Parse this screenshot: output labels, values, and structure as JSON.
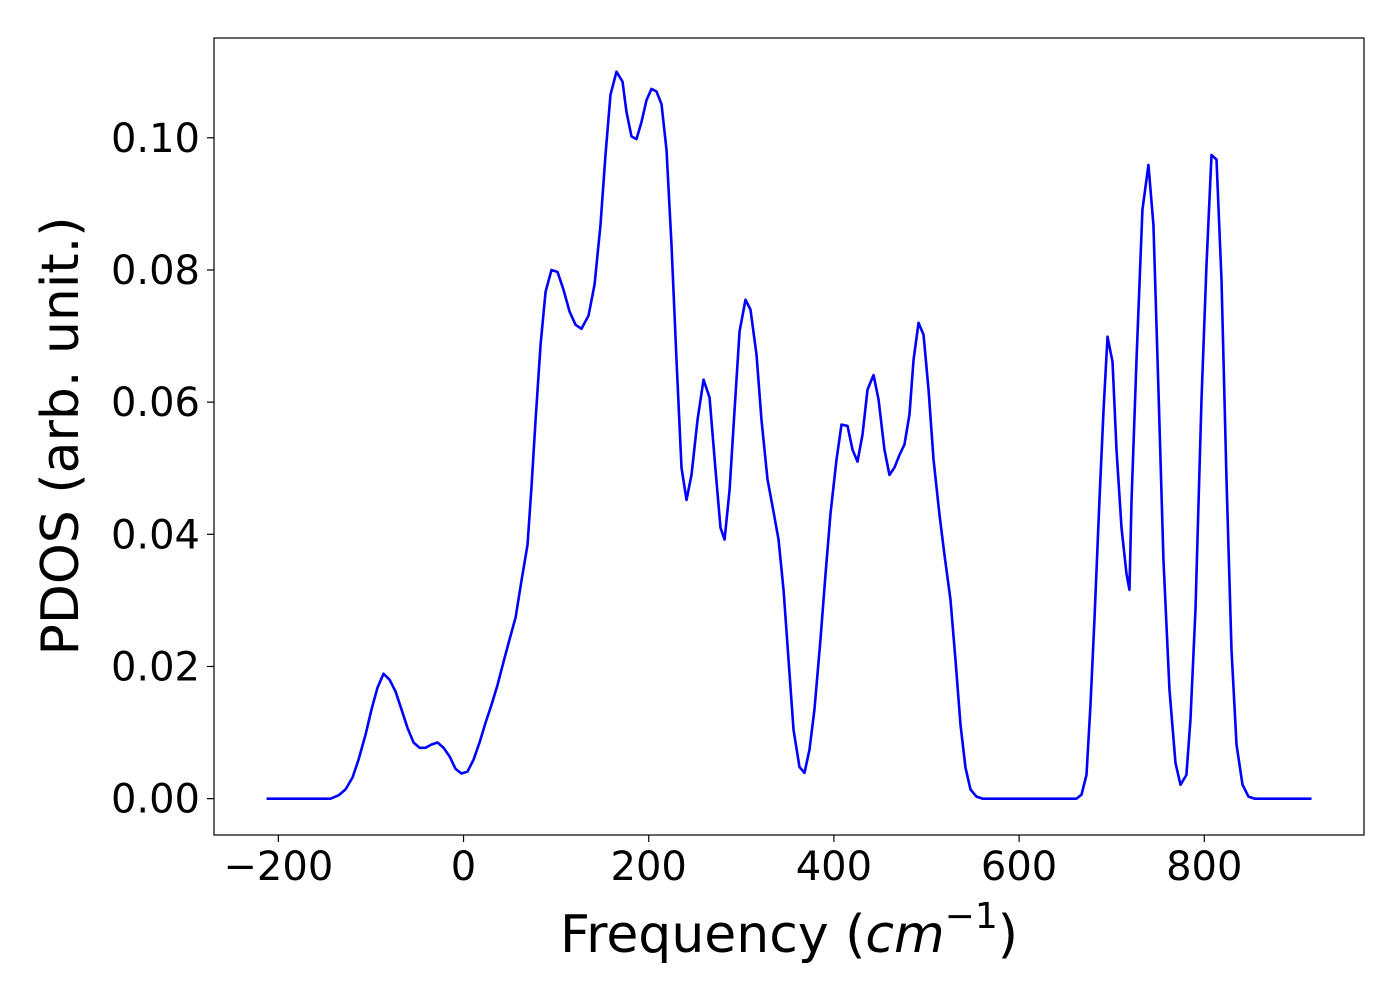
{
  "chart_data": {
    "type": "line",
    "y_label": "PDOS (arb. unit.)",
    "x_label": {
      "text": "Frequency (",
      "unit": "cm",
      "exponent": "−1",
      "close": ")"
    },
    "color": "#0000ff",
    "xlim": [
      -269.5,
      972.5
    ],
    "ylim": [
      -0.0055,
      0.1151
    ],
    "xticks": [
      {
        "value": -200,
        "label": "−200"
      },
      0,
      200,
      400,
      600,
      800
    ],
    "yticks": [
      {
        "value": 0,
        "label": "0.00"
      },
      {
        "value": 0.02,
        "label": "0.02"
      },
      {
        "value": 0.04,
        "label": "0.04"
      },
      {
        "value": 0.06,
        "label": "0.06"
      },
      {
        "value": 0.08,
        "label": "0.08"
      },
      {
        "value": 0.1,
        "label": "0.10"
      }
    ],
    "grid": false,
    "x": [
      -212.7,
      -143.6,
      -135.0,
      -127.4,
      -119.9,
      -113.4,
      -105.8,
      -99.4,
      -92.9,
      -86.4,
      -79.9,
      -73.4,
      -67.0,
      -60.5,
      -54.0,
      -47.5,
      -41.0,
      -34.6,
      -28.1,
      -21.6,
      -15.1,
      -8.6,
      -2.2,
      4.3,
      10.8,
      17.3,
      23.8,
      30.2,
      36.7,
      43.2,
      49.7,
      56.2,
      62.6,
      69.1,
      73.4,
      77.8,
      83.2,
      88.6,
      95.0,
      101.5,
      108.0,
      114.5,
      121.0,
      127.4,
      135.0,
      141.5,
      147.9,
      153.3,
      158.7,
      165.2,
      171.7,
      176.0,
      181.4,
      186.8,
      192.2,
      197.6,
      203.0,
      208.4,
      213.8,
      219.2,
      224.6,
      230.0,
      235.4,
      240.8,
      246.2,
      252.7,
      259.2,
      265.7,
      272.1,
      277.5,
      281.9,
      287.3,
      292.7,
      298.1,
      304.5,
      309.9,
      316.4,
      321.8,
      328.3,
      334.8,
      340.2,
      345.6,
      351.0,
      356.4,
      362.8,
      368.2,
      373.6,
      379.0,
      385.5,
      390.9,
      396.3,
      402.8,
      408.2,
      414.7,
      420.1,
      425.5,
      430.9,
      436.3,
      442.8,
      448.2,
      454.6,
      460.0,
      465.4,
      470.8,
      476.2,
      481.6,
      486.0,
      491.4,
      496.8,
      502.2,
      507.6,
      514.0,
      519.4,
      525.9,
      531.3,
      536.7,
      542.1,
      547.5,
      554.0,
      560.5,
      662.0,
      667.4,
      672.8,
      677.1,
      681.4,
      686.8,
      691.2,
      695.5,
      700.9,
      705.2,
      710.6,
      716.0,
      719.2,
      721.4,
      726.8,
      733.2,
      739.7,
      745.1,
      750.5,
      755.9,
      762.4,
      768.9,
      774.3,
      780.7,
      785.1,
      790.5,
      797.0,
      802.4,
      807.8,
      813.2,
      818.6,
      824.0,
      829.4,
      834.8,
      841.3,
      847.8,
      854.2,
      915.8
    ],
    "values": [
      0,
      0,
      0.0005,
      0.0014,
      0.0032,
      0.0059,
      0.0097,
      0.0135,
      0.0168,
      0.0189,
      0.018,
      0.0162,
      0.0135,
      0.0107,
      0.0085,
      0.0077,
      0.0077,
      0.0082,
      0.0085,
      0.0077,
      0.0064,
      0.0045,
      0.0038,
      0.0041,
      0.0059,
      0.0085,
      0.0115,
      0.0142,
      0.0172,
      0.0207,
      0.0241,
      0.0274,
      0.033,
      0.0384,
      0.0472,
      0.0573,
      0.0687,
      0.0767,
      0.08,
      0.0797,
      0.077,
      0.0737,
      0.0717,
      0.0711,
      0.0731,
      0.0778,
      0.0868,
      0.0974,
      0.1065,
      0.11,
      0.1085,
      0.1039,
      0.1002,
      0.0998,
      0.1024,
      0.1057,
      0.1074,
      0.107,
      0.1051,
      0.0982,
      0.0838,
      0.0664,
      0.0501,
      0.0452,
      0.049,
      0.0573,
      0.0634,
      0.0607,
      0.0498,
      0.041,
      0.0392,
      0.0467,
      0.0588,
      0.0707,
      0.0755,
      0.074,
      0.0672,
      0.0573,
      0.0483,
      0.0434,
      0.0392,
      0.0316,
      0.021,
      0.0104,
      0.0048,
      0.0039,
      0.0074,
      0.0135,
      0.0241,
      0.0339,
      0.0431,
      0.0513,
      0.0566,
      0.0564,
      0.0528,
      0.051,
      0.0551,
      0.0619,
      0.0641,
      0.0604,
      0.0528,
      0.049,
      0.0501,
      0.052,
      0.0536,
      0.0581,
      0.0664,
      0.072,
      0.0702,
      0.0619,
      0.0513,
      0.043,
      0.0369,
      0.0301,
      0.021,
      0.0112,
      0.0047,
      0.0014,
      0.0003,
      0,
      0,
      0.0006,
      0.0036,
      0.0142,
      0.0271,
      0.0452,
      0.0588,
      0.0699,
      0.0661,
      0.0528,
      0.041,
      0.034,
      0.0316,
      0.045,
      0.0664,
      0.0891,
      0.0959,
      0.0868,
      0.0619,
      0.0362,
      0.0165,
      0.0054,
      0.0021,
      0.0036,
      0.012,
      0.0286,
      0.0604,
      0.0808,
      0.0974,
      0.0967,
      0.0785,
      0.0483,
      0.0225,
      0.0082,
      0.0021,
      0.0003,
      0,
      0
    ]
  }
}
